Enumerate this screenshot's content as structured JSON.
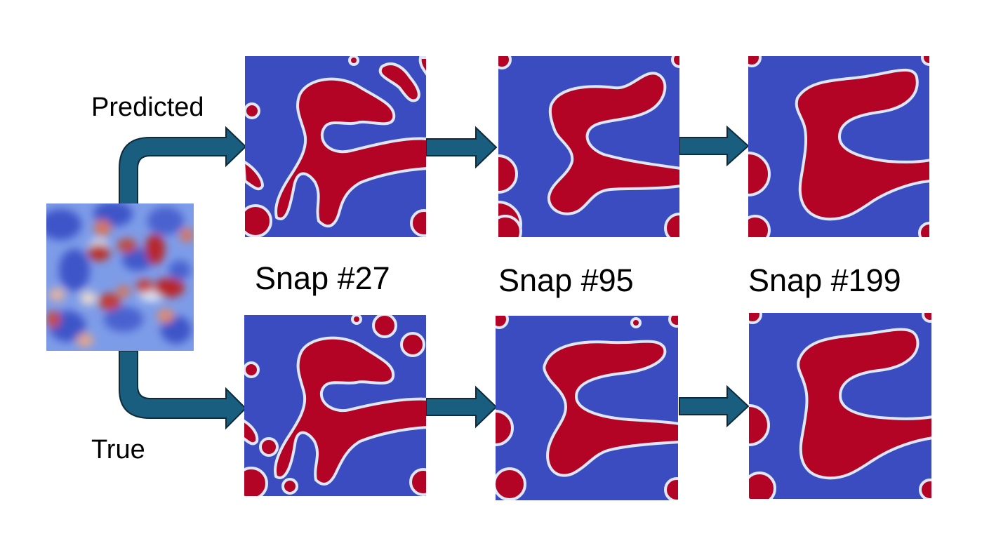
{
  "labels": {
    "predicted": "Predicted",
    "true": "True"
  },
  "snapshots": [
    {
      "label": "Snap #27"
    },
    {
      "label": "Snap #95"
    },
    {
      "label": "Snap #199"
    }
  ],
  "colors": {
    "background": "#ffffff",
    "phase_low": "#3a4cc0",
    "phase_high": "#b40426",
    "interface": "#dfe6f5",
    "arrow_fill": "#195e7f",
    "arrow_stroke": "#0d2b3b"
  }
}
